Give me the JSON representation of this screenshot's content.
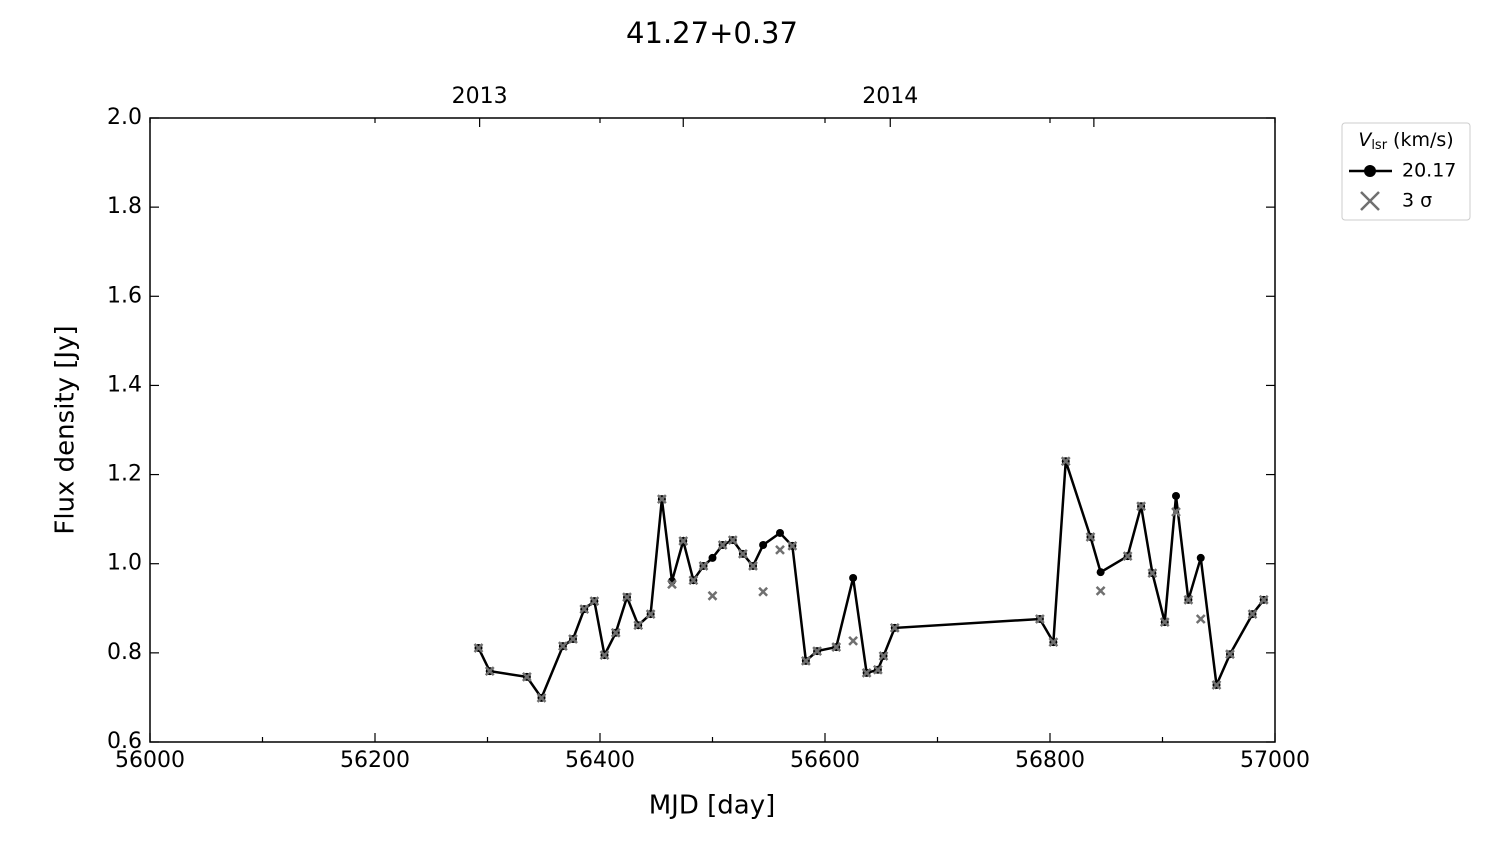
{
  "chart_data": {
    "type": "line",
    "title": "41.27+0.37",
    "xlabel": "MJD [day]",
    "ylabel": "Flux density [Jy]",
    "xlim": [
      56000,
      57000
    ],
    "ylim": [
      0.6,
      2.0
    ],
    "xticks": [
      56000,
      56200,
      56400,
      56600,
      56800,
      57000
    ],
    "xminor": [
      56100,
      56300,
      56500,
      56700,
      56900
    ],
    "yticks": [
      {
        "value": 0.6,
        "label": "0.6"
      },
      {
        "value": 0.8,
        "label": "0.8"
      },
      {
        "value": 1.0,
        "label": "1.0"
      },
      {
        "value": 1.2,
        "label": "1.2"
      },
      {
        "value": 1.4,
        "label": "1.4"
      },
      {
        "value": 1.6,
        "label": "1.6"
      },
      {
        "value": 1.8,
        "label": "1.8"
      },
      {
        "value": 2.0,
        "label": "2.0"
      }
    ],
    "x2ticks": [
      {
        "value": 56293,
        "label": "2013"
      },
      {
        "value": 56658,
        "label": "2014"
      }
    ],
    "x2minor": [
      56474,
      56839
    ],
    "legend": {
      "loc": "outside upper right",
      "title": {
        "symbol": "V",
        "subscript": "lsr",
        "unit": "(km/s)"
      }
    },
    "x": [
      56292,
      56302,
      56335,
      56348,
      56367,
      56376,
      56386,
      56395,
      56404,
      56414,
      56424,
      56434,
      56445,
      56455,
      56464,
      56474,
      56483,
      56492,
      56500,
      56509,
      56518,
      56527,
      56536,
      56545,
      56560,
      56571,
      56583,
      56593,
      56610,
      56625,
      56637,
      56647,
      56652,
      56662,
      56791,
      56803,
      56814,
      56836,
      56845,
      56869,
      56881,
      56891,
      56902,
      56912,
      56923,
      56934,
      56948,
      56960,
      56980,
      56990
    ],
    "series": [
      {
        "name": "20.17",
        "color": "#000000",
        "marker": "o",
        "line": true,
        "values": [
          0.811,
          0.759,
          0.746,
          0.699,
          0.815,
          0.831,
          0.898,
          0.916,
          0.795,
          0.845,
          0.925,
          0.862,
          0.887,
          1.145,
          0.961,
          1.051,
          0.963,
          0.995,
          1.013,
          1.042,
          1.053,
          1.022,
          0.995,
          1.042,
          1.069,
          1.04,
          0.782,
          0.804,
          0.813,
          0.968,
          0.755,
          0.762,
          0.793,
          0.856,
          0.876,
          0.824,
          1.23,
          1.06,
          0.981,
          1.017,
          1.129,
          0.979,
          0.869,
          1.152,
          0.919,
          1.013,
          0.728,
          0.797,
          0.887,
          0.919
        ]
      },
      {
        "name": "3 σ",
        "color": "#707070",
        "marker": "x",
        "line": false,
        "values": [
          0.811,
          0.759,
          0.746,
          0.699,
          0.815,
          0.831,
          0.898,
          0.916,
          0.795,
          0.845,
          0.925,
          0.862,
          0.887,
          1.145,
          0.954,
          1.051,
          0.963,
          0.995,
          0.928,
          1.042,
          1.053,
          1.022,
          0.995,
          0.937,
          1.031,
          1.04,
          0.782,
          0.804,
          0.813,
          0.827,
          0.755,
          0.762,
          0.793,
          0.856,
          0.876,
          0.824,
          1.23,
          1.06,
          0.939,
          1.017,
          1.129,
          0.979,
          0.869,
          1.116,
          0.919,
          0.876,
          0.728,
          0.797,
          0.887,
          0.919
        ]
      }
    ]
  }
}
